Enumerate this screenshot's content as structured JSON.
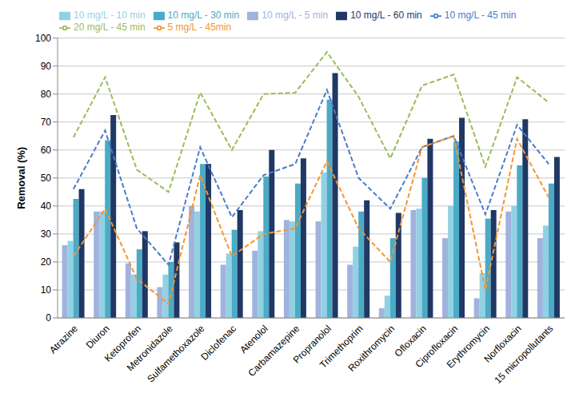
{
  "chart_data": {
    "type": "bar",
    "y_label": "Removal (%)",
    "categories": [
      "Atrazine",
      "Diuron",
      "Ketoprofen",
      "Metronidazole",
      "Sulfamethoxazole",
      "Diclofenac",
      "Atenolol",
      "Carbamazepine",
      "Propranolol",
      "Trimethoprim",
      "Roxithromycin",
      "Ofloxacin",
      "Ciprofloxacin",
      "Erythromycin",
      "Norfloxacin",
      "15 micropollutants"
    ],
    "series": [
      {
        "name": "10 mg/L  - 5 min",
        "type": "bar",
        "color": "#9fb3dd",
        "values": [
          26,
          38,
          19.5,
          11,
          40,
          19,
          24,
          35,
          34.5,
          19,
          3.5,
          38.5,
          28.5,
          7,
          38,
          28.5
        ]
      },
      {
        "name": "10 mg/L  - 10 min",
        "type": "bar",
        "color": "#92d1e3",
        "values": [
          27.5,
          38,
          15.5,
          15.5,
          38,
          23,
          31,
          34.5,
          52,
          25.5,
          8,
          39,
          40,
          16,
          40,
          33
        ]
      },
      {
        "name": "10 mg/L  - 30 min",
        "type": "bar",
        "color": "#4babc6",
        "values": [
          42.5,
          63.5,
          24.5,
          20,
          55,
          31.5,
          50.5,
          48,
          78,
          38,
          28.5,
          50,
          63,
          35.5,
          54.5,
          48
        ]
      },
      {
        "name": "10 mg/L  - 60 min",
        "type": "bar",
        "color": "#1f3864",
        "values": [
          46,
          72.5,
          31,
          27,
          55,
          38.5,
          60,
          57,
          87.5,
          42,
          37.5,
          64,
          71.5,
          38.5,
          71,
          57.5
        ]
      },
      {
        "name": "10 mg/L - 45 min",
        "type": "line",
        "line_style": "dashed",
        "marker": "none",
        "color": "#4a7cc8",
        "values": [
          46,
          67,
          32,
          19,
          61,
          36,
          51,
          55,
          81.5,
          50,
          39,
          61,
          65,
          37,
          69,
          55
        ]
      },
      {
        "name": "5 mg/L - 45min",
        "type": "line",
        "line_style": "dashed",
        "marker": "none",
        "color": "#f39632",
        "values": [
          22,
          39,
          14,
          5,
          51,
          22,
          30,
          32,
          56,
          32,
          20,
          61,
          65,
          10,
          64,
          43
        ]
      },
      {
        "name": "20 mg/L - 45 min",
        "type": "line",
        "line_style": "dashed",
        "marker": "none",
        "color": "#9bbb59",
        "values": [
          64.5,
          86,
          53,
          45,
          80.5,
          60,
          80,
          80.5,
          95,
          79,
          57,
          83,
          87,
          54,
          86,
          77
        ]
      }
    ],
    "ylim": [
      0,
      100
    ],
    "yticks": [
      0,
      10,
      20,
      30,
      40,
      50,
      60,
      70,
      80,
      90,
      100
    ],
    "grid": true,
    "legend": "top"
  }
}
